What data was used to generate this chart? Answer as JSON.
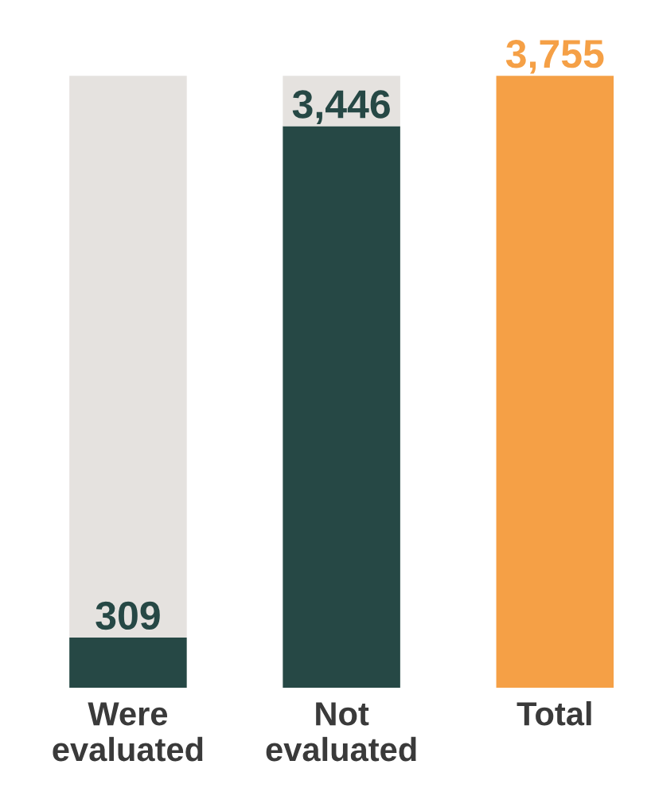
{
  "chart_data": {
    "type": "bar",
    "stacked": true,
    "categories": [
      "Were evaluated",
      "Not evaluated",
      "Total"
    ],
    "series": [
      {
        "colors": [
          "#264845",
          "#264845",
          "#f5a046"
        ],
        "values": [
          309,
          3446,
          3755
        ],
        "value_labels": [
          "309",
          "3,446",
          "3,755"
        ]
      },
      {
        "color": "#e5e2df",
        "values": [
          3446,
          309,
          0
        ]
      }
    ],
    "grid": false,
    "legend": false
  }
}
